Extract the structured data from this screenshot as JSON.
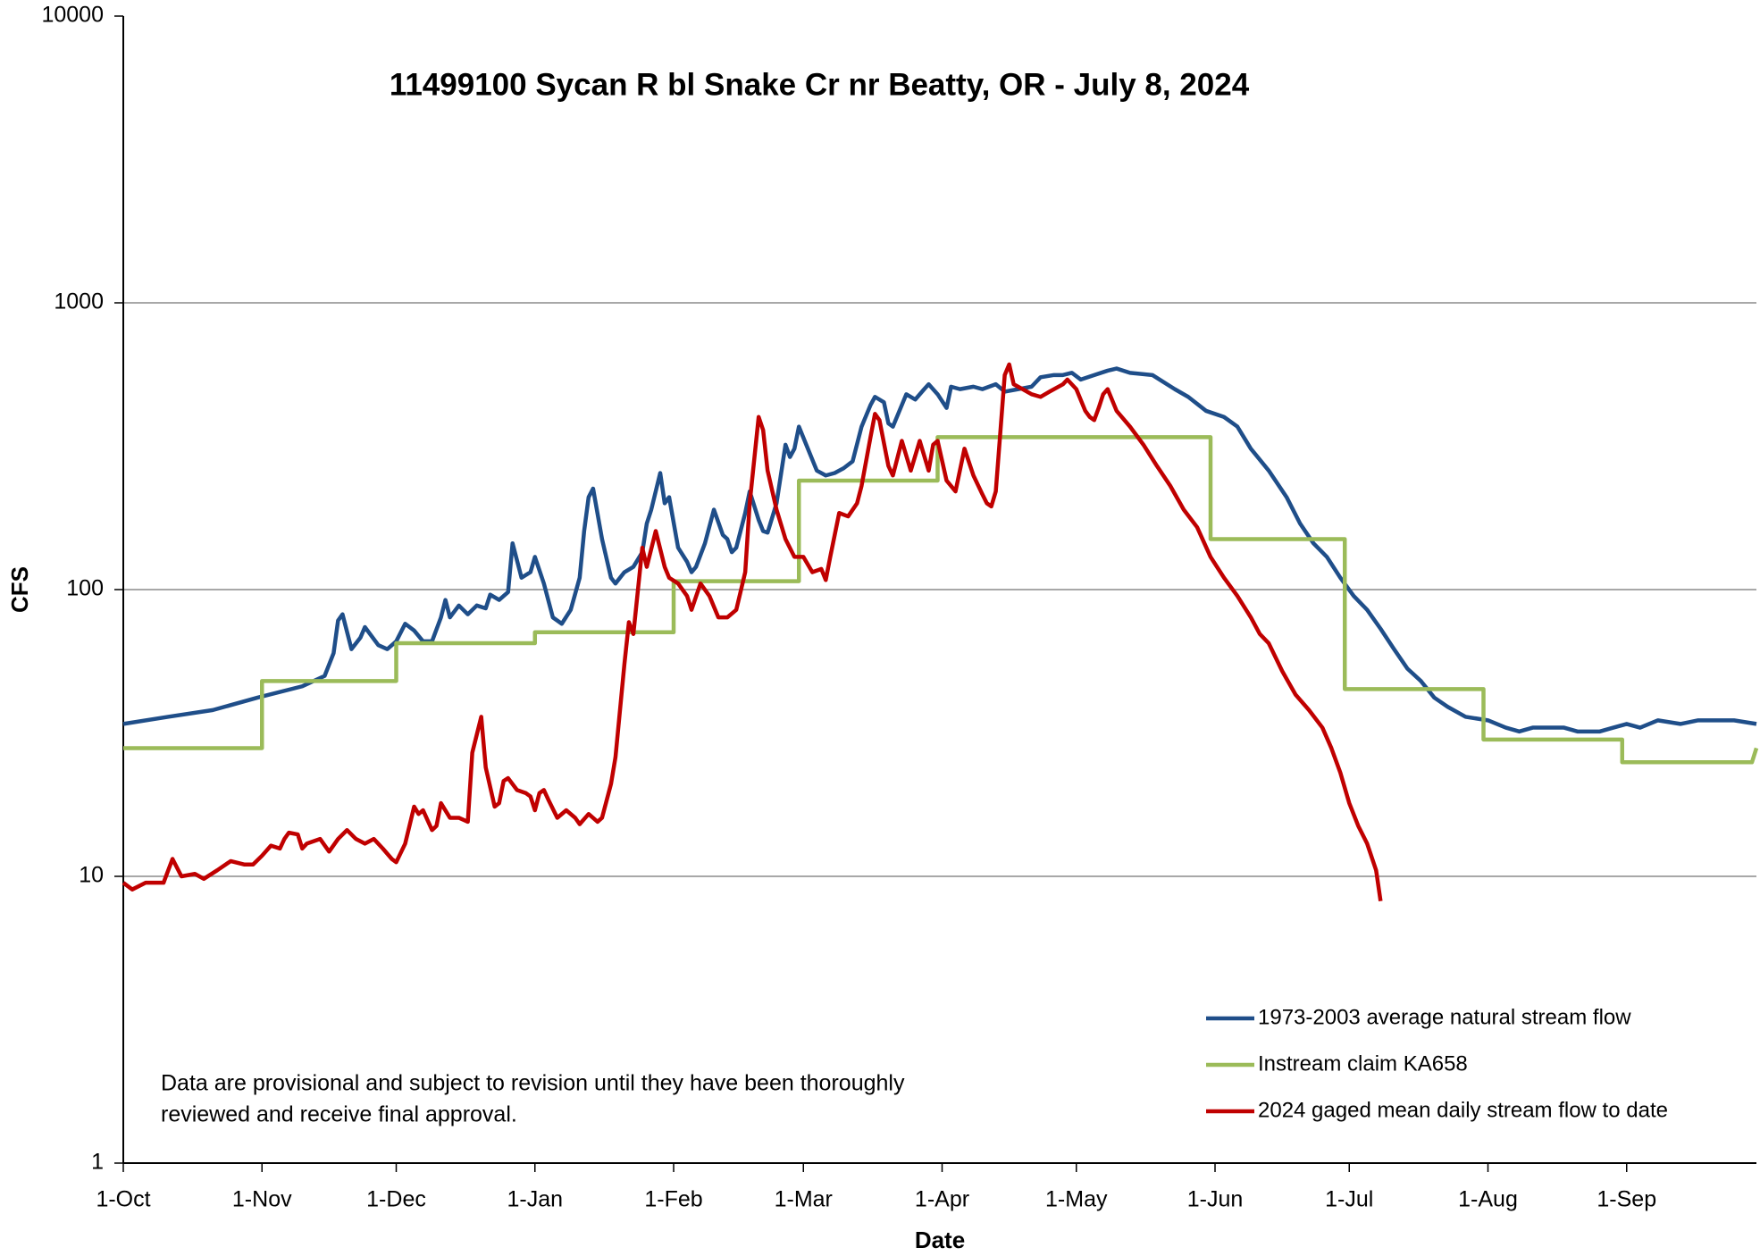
{
  "chart_data": {
    "type": "line",
    "title": "11499100 Sycan R bl Snake Cr nr Beatty, OR -  July 8, 2024",
    "x_label": "Date",
    "y_label": "CFS",
    "annotation": [
      "Data are provisional and subject to revision until they have been thoroughly",
      "reviewed and receive final approval."
    ],
    "log_y": true,
    "grid": true,
    "legend": "lower right",
    "xlim": [
      0,
      365
    ],
    "xticks": [
      {
        "value": 0,
        "label": "1-Oct"
      },
      {
        "value": 31,
        "label": "1-Nov"
      },
      {
        "value": 61,
        "label": "1-Dec"
      },
      {
        "value": 92,
        "label": "1-Jan"
      },
      {
        "value": 123,
        "label": "1-Feb"
      },
      {
        "value": 152,
        "label": "1-Mar"
      },
      {
        "value": 183,
        "label": "1-Apr"
      },
      {
        "value": 213,
        "label": "1-May"
      },
      {
        "value": 244,
        "label": "1-Jun"
      },
      {
        "value": 274,
        "label": "1-Jul"
      },
      {
        "value": 305,
        "label": "1-Aug"
      },
      {
        "value": 336,
        "label": "1-Sep"
      }
    ],
    "ylim": [
      1,
      10000
    ],
    "yticks": [
      1,
      10,
      100,
      1000,
      10000
    ],
    "series": [
      {
        "name": "1973-2003 average natural stream flow",
        "color": "#1f4e89",
        "x": [
          0,
          10,
          20,
          30,
          40,
          45,
          47,
          48,
          49,
          51,
          53,
          54,
          57,
          59,
          61,
          63,
          65,
          67,
          69,
          71,
          72,
          73,
          75,
          77,
          79,
          81,
          82,
          84,
          86,
          87,
          89,
          91,
          92,
          94,
          96,
          98,
          100,
          102,
          103,
          104,
          105,
          107,
          109,
          110,
          112,
          114,
          116,
          117,
          118,
          120,
          121,
          122,
          124,
          126,
          127,
          128,
          130,
          132,
          134,
          135,
          136,
          137,
          139,
          140,
          142,
          143,
          144,
          146,
          148,
          149,
          150,
          151,
          153,
          155,
          157,
          159,
          161,
          163,
          165,
          167,
          168,
          170,
          171,
          172,
          174,
          175,
          177,
          179,
          180,
          182,
          184,
          185,
          187,
          190,
          192,
          195,
          197,
          200,
          203,
          205,
          208,
          210,
          212,
          214,
          217,
          220,
          222,
          225,
          230,
          235,
          238,
          242,
          246,
          249,
          252,
          256,
          260,
          263,
          266,
          269,
          272,
          275,
          278,
          281,
          284,
          287,
          290,
          293,
          296,
          300,
          305,
          309,
          312,
          315,
          318,
          322,
          325,
          330,
          333,
          336,
          339,
          343,
          348,
          352,
          356,
          360,
          365
        ],
        "values": [
          34,
          36,
          38,
          42,
          46,
          50,
          60,
          78,
          82,
          62,
          68,
          74,
          64,
          62,
          66,
          76,
          72,
          66,
          66,
          80,
          92,
          80,
          88,
          82,
          88,
          86,
          96,
          92,
          98,
          145,
          110,
          115,
          130,
          105,
          80,
          76,
          85,
          110,
          160,
          210,
          225,
          150,
          110,
          105,
          115,
          120,
          135,
          170,
          190,
          255,
          200,
          210,
          140,
          125,
          115,
          120,
          145,
          190,
          155,
          150,
          135,
          140,
          185,
          220,
          175,
          160,
          158,
          200,
          320,
          290,
          310,
          370,
          310,
          260,
          250,
          255,
          265,
          280,
          370,
          440,
          470,
          450,
          380,
          370,
          440,
          480,
          460,
          500,
          520,
          480,
          430,
          510,
          500,
          510,
          500,
          520,
          490,
          500,
          510,
          550,
          560,
          560,
          570,
          540,
          560,
          580,
          590,
          570,
          560,
          500,
          470,
          420,
          400,
          370,
          310,
          260,
          210,
          170,
          145,
          130,
          110,
          95,
          85,
          73,
          62,
          53,
          48,
          42,
          39,
          36,
          35,
          33,
          32,
          33,
          33,
          33,
          32,
          32,
          33,
          34,
          33,
          35,
          34,
          35,
          35,
          35,
          34
        ]
      },
      {
        "name": "Instream claim KA658",
        "color": "#9bbb59",
        "x": [
          0,
          31,
          31,
          61,
          61,
          92,
          92,
          123,
          123,
          151,
          151,
          182,
          182,
          243,
          243,
          273,
          273,
          304,
          304,
          335,
          335,
          364,
          365
        ],
        "values": [
          28,
          28,
          48,
          48,
          65,
          65,
          71,
          71,
          107,
          107,
          240,
          240,
          340,
          340,
          150,
          150,
          45,
          45,
          30,
          30,
          25,
          25,
          28
        ]
      },
      {
        "name": "2024 gaged mean daily stream flow to date",
        "color": "#c00000",
        "x": [
          0,
          2,
          5,
          9,
          11,
          13,
          16,
          18,
          21,
          24,
          27,
          29,
          31,
          33,
          35,
          36,
          37,
          39,
          40,
          41,
          44,
          46,
          48,
          50,
          52,
          54,
          56,
          58,
          60,
          61,
          63,
          65,
          66,
          67,
          69,
          70,
          71,
          73,
          75,
          77,
          78,
          80,
          81,
          83,
          84,
          85,
          86,
          88,
          90,
          91,
          92,
          93,
          94,
          95,
          97,
          99,
          101,
          102,
          104,
          106,
          107,
          109,
          110,
          112,
          113,
          114,
          116,
          117,
          119,
          121,
          122,
          124,
          126,
          127,
          129,
          131,
          133,
          135,
          137,
          139,
          140,
          142,
          143,
          144,
          146,
          148,
          150,
          152,
          154,
          156,
          157,
          158,
          160,
          162,
          164,
          165,
          167,
          168,
          169,
          171,
          172,
          174,
          176,
          178,
          180,
          181,
          182,
          184,
          186,
          188,
          190,
          192,
          193,
          194,
          195,
          197,
          198,
          199,
          201,
          203,
          205,
          207,
          210,
          211,
          213,
          215,
          216,
          217,
          218,
          219,
          220,
          222,
          225,
          228,
          231,
          234,
          237,
          240,
          243,
          246,
          249,
          252,
          254,
          256,
          259,
          262,
          265,
          268,
          270,
          272,
          274,
          276,
          278,
          280,
          281
        ],
        "values": [
          9.5,
          9.0,
          9.5,
          9.5,
          11.5,
          10,
          10.2,
          9.8,
          10.5,
          11.3,
          11,
          11,
          11.8,
          12.8,
          12.5,
          13.5,
          14.2,
          14,
          12.5,
          13,
          13.5,
          12.2,
          13.5,
          14.5,
          13.5,
          13,
          13.5,
          12.5,
          11.5,
          11.2,
          13,
          17.5,
          16.5,
          17,
          14.5,
          15,
          18,
          16,
          16,
          15.5,
          27,
          36,
          24,
          17.5,
          18,
          21.5,
          22,
          20,
          19.5,
          19,
          17,
          19.5,
          20,
          18.5,
          16,
          17,
          16,
          15.2,
          16.5,
          15.5,
          16,
          21,
          26,
          55,
          77,
          70,
          140,
          120,
          160,
          120,
          110,
          105,
          95,
          85,
          105,
          95,
          80,
          80,
          85,
          115,
          200,
          400,
          360,
          260,
          190,
          150,
          130,
          130,
          115,
          118,
          108,
          130,
          185,
          180,
          200,
          230,
          340,
          410,
          390,
          270,
          250,
          330,
          260,
          330,
          260,
          320,
          330,
          240,
          220,
          310,
          250,
          215,
          200,
          195,
          220,
          560,
          610,
          520,
          500,
          480,
          470,
          490,
          520,
          540,
          500,
          420,
          400,
          390,
          430,
          480,
          500,
          420,
          370,
          320,
          270,
          230,
          190,
          165,
          130,
          110,
          95,
          80,
          70,
          65,
          52,
          43,
          38,
          33,
          28,
          23,
          18,
          15,
          13,
          10.5,
          8.2
        ]
      }
    ]
  }
}
